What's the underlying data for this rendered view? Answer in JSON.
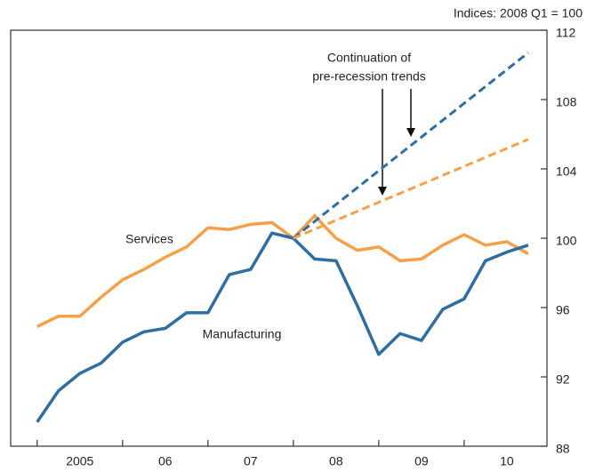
{
  "chart_data": {
    "type": "line",
    "subtitle": "Indices: 2008 Q1 = 100",
    "annotation": [
      "Continuation of",
      "pre-recession trends"
    ],
    "x": [
      2005,
      2005.25,
      2005.5,
      2005.75,
      2006,
      2006.25,
      2006.5,
      2006.75,
      2007,
      2007.25,
      2007.5,
      2007.75,
      2008,
      2008.25,
      2008.5,
      2008.75,
      2009,
      2009.25,
      2009.5,
      2009.75,
      2010,
      2010.25,
      2010.5,
      2010.75
    ],
    "series": [
      {
        "name": "Services",
        "color": "#f5a04a",
        "values": [
          94.9,
          95.5,
          95.5,
          96.6,
          97.6,
          98.2,
          98.9,
          99.5,
          100.6,
          100.5,
          100.8,
          100.9,
          100,
          101.3,
          100,
          99.3,
          99.5,
          98.7,
          98.8,
          99.6,
          100.2,
          99.6,
          99.8,
          99.1
        ]
      },
      {
        "name": "Manufacturing",
        "color": "#2f6ea1",
        "values": [
          89.4,
          91.2,
          92.2,
          92.8,
          94.0,
          94.6,
          94.8,
          95.7,
          95.7,
          97.9,
          98.2,
          100.3,
          100,
          98.8,
          98.7,
          96.1,
          93.3,
          94.5,
          94.1,
          95.9,
          96.5,
          98.7,
          99.2,
          99.6
        ]
      },
      {
        "color": "#2f6ea1",
        "dashed": true,
        "x": [
          2008,
          2010.75
        ],
        "values": [
          100,
          110.7
        ]
      },
      {
        "color": "#f5a04a",
        "dashed": true,
        "x": [
          2008,
          2010.75
        ],
        "values": [
          100,
          105.7
        ]
      }
    ],
    "xlim": [
      2004.69,
      2010.97
    ],
    "xticks": [
      {
        "value": 2005,
        "label": "2005"
      },
      {
        "value": 2006,
        "label": "06"
      },
      {
        "value": 2007,
        "label": "07"
      },
      {
        "value": 2008,
        "label": "08"
      },
      {
        "value": 2009,
        "label": "09"
      },
      {
        "value": 2010,
        "label": "10"
      }
    ],
    "ylim": [
      88,
      112
    ],
    "yticks": [
      88,
      92,
      96,
      100,
      104,
      108,
      112
    ]
  }
}
